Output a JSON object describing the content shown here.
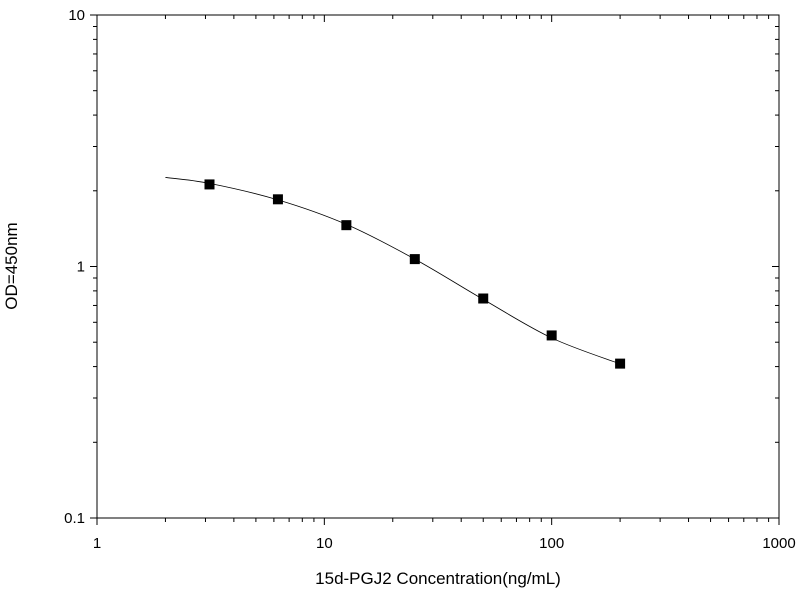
{
  "chart_data": {
    "type": "scatter",
    "x_label": "15d-PGJ2 Concentration(ng/mL)",
    "y_label": "OD=450nm",
    "x_log": true,
    "y_log": true,
    "xlim": [
      1,
      1000
    ],
    "ylim": [
      0.1,
      10
    ],
    "xticks": [
      1,
      10,
      100,
      1000
    ],
    "yticks": [
      0.1,
      1,
      10
    ],
    "x_minor_ticks": [
      2,
      3,
      4,
      5,
      6,
      7,
      8,
      9,
      20,
      30,
      40,
      50,
      60,
      70,
      80,
      90,
      200,
      300,
      400,
      500,
      600,
      700,
      800,
      900
    ],
    "y_minor_ticks": [
      0.2,
      0.3,
      0.4,
      0.5,
      0.6,
      0.7,
      0.8,
      0.9,
      2,
      3,
      4,
      5,
      6,
      7,
      8,
      9
    ],
    "x": [
      3.125,
      6.25,
      12.5,
      25,
      50,
      100,
      200
    ],
    "values": [
      2.12,
      1.85,
      1.46,
      1.07,
      0.746,
      0.532,
      0.411
    ],
    "color": "#000000",
    "curve": {
      "x": [
        2,
        3.125,
        6.25,
        12.5,
        25,
        50,
        100,
        200
      ],
      "values": [
        2.26,
        2.14,
        1.84,
        1.47,
        1.07,
        0.74,
        0.52,
        0.41
      ]
    }
  }
}
